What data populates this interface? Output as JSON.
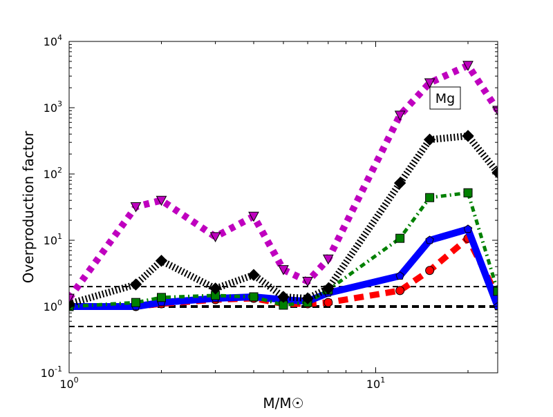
{
  "chart_data": {
    "type": "line",
    "title": "",
    "xlabel": "M/M☉",
    "ylabel": "Overproduction factor",
    "xscale": "log",
    "yscale": "log",
    "xlim": [
      1,
      25
    ],
    "ylim": [
      0.1,
      10000
    ],
    "x_ticks": [
      {
        "value": 1,
        "label": "10",
        "exp": "0"
      },
      {
        "value": 10,
        "label": "10",
        "exp": "1"
      }
    ],
    "y_ticks": [
      {
        "value": 0.1,
        "label": "10",
        "exp": "-1"
      },
      {
        "value": 1,
        "label": "10",
        "exp": "0"
      },
      {
        "value": 10,
        "label": "10",
        "exp": "1"
      },
      {
        "value": 100,
        "label": "10",
        "exp": "2"
      },
      {
        "value": 1000,
        "label": "10",
        "exp": "3"
      },
      {
        "value": 10000,
        "label": "10",
        "exp": "4"
      }
    ],
    "annotation": "Mg",
    "reference_lines": [
      0.5,
      1,
      2
    ],
    "x": [
      1,
      1.65,
      2,
      3,
      4,
      5,
      6,
      7,
      12,
      15,
      20,
      25
    ],
    "series": [
      {
        "name": "red-circles",
        "color": "#ff0000",
        "marker": "circle",
        "linestyle": "dashed",
        "values": [
          1.0,
          1.0,
          1.1,
          1.27,
          1.33,
          1.1,
          1.1,
          1.15,
          1.74,
          3.5,
          10.7,
          1.4
        ]
      },
      {
        "name": "blue-pentagons",
        "color": "#0000ff",
        "marker": "pentagon",
        "linestyle": "solid",
        "values": [
          1.0,
          1.0,
          1.15,
          1.33,
          1.4,
          1.27,
          1.2,
          1.6,
          2.9,
          10,
          14.7,
          1.0
        ]
      },
      {
        "name": "green-squares",
        "color": "#008000",
        "marker": "square",
        "linestyle": "dashdot",
        "values": [
          1.0,
          1.15,
          1.37,
          1.47,
          1.4,
          1.05,
          1.15,
          1.78,
          10.7,
          44,
          52,
          1.7
        ]
      },
      {
        "name": "black-diamonds",
        "color": "#000000",
        "marker": "diamond",
        "linestyle": "dotted",
        "values": [
          1.1,
          2.15,
          4.9,
          1.87,
          3.0,
          1.4,
          1.33,
          1.87,
          73,
          330,
          375,
          105
        ]
      },
      {
        "name": "magenta-triangles",
        "color": "#bf00bf",
        "marker": "triangle-down",
        "linestyle": "dotted",
        "values": [
          1.33,
          32,
          40,
          11.3,
          23,
          3.6,
          2.4,
          5.2,
          770,
          2370,
          4340,
          910
        ]
      }
    ]
  }
}
